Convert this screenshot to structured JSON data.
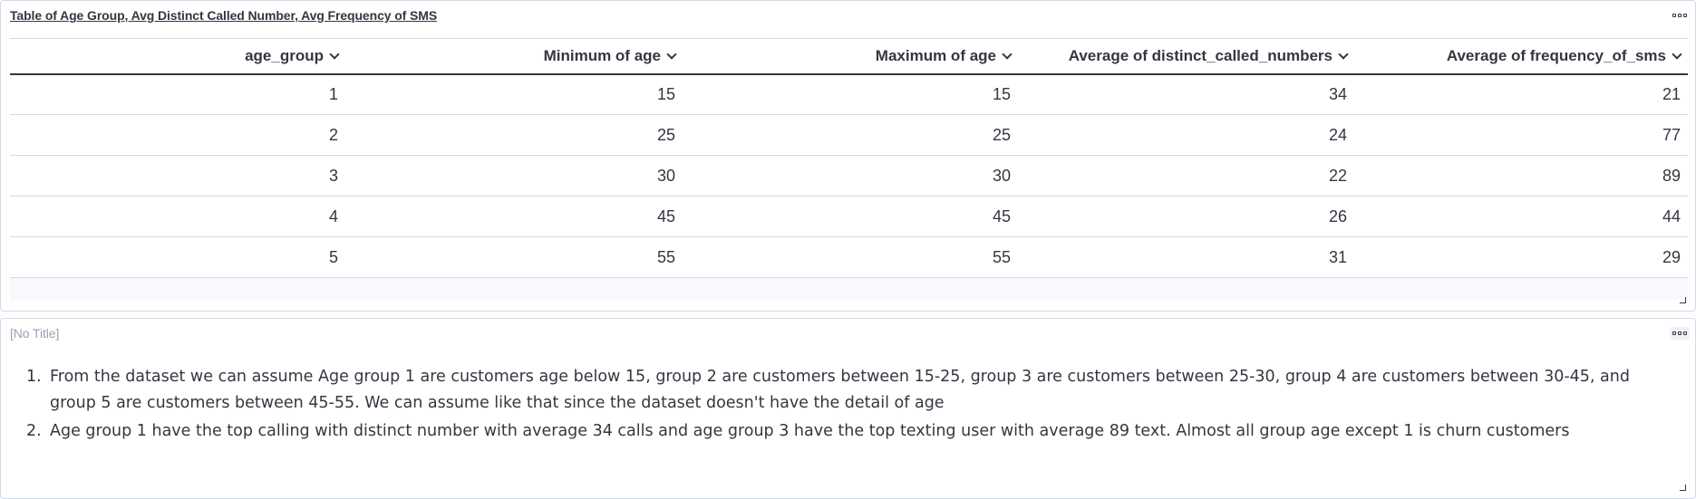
{
  "table_panel": {
    "title": "Table of Age Group, Avg Distinct Called Number, Avg Frequency of SMS",
    "columns": [
      "age_group",
      "Minimum of age",
      "Maximum of age",
      "Average of distinct_called_numbers",
      "Average of frequency_of_sms"
    ],
    "rows": [
      [
        "1",
        "15",
        "15",
        "34",
        "21"
      ],
      [
        "2",
        "25",
        "25",
        "24",
        "77"
      ],
      [
        "3",
        "30",
        "30",
        "22",
        "89"
      ],
      [
        "4",
        "45",
        "45",
        "26",
        "44"
      ],
      [
        "5",
        "55",
        "55",
        "31",
        "29"
      ]
    ]
  },
  "text_panel": {
    "title": "[No Title]",
    "items": [
      {
        "num": "1.",
        "text": "From the dataset we can assume Age group 1 are customers age below 15, group 2 are customers between 15-25, group 3 are customers between 25-30, group 4 are customers between 30-45, and group 5 are customers between 45-55. We can assume like that since the dataset doesn't have the detail of age"
      },
      {
        "num": "2.",
        "text": "Age group 1 have the top calling with distinct number with average 34 calls and age group 3 have the top texting user with average 89 text. Almost all group age except 1 is churn customers"
      }
    ]
  }
}
